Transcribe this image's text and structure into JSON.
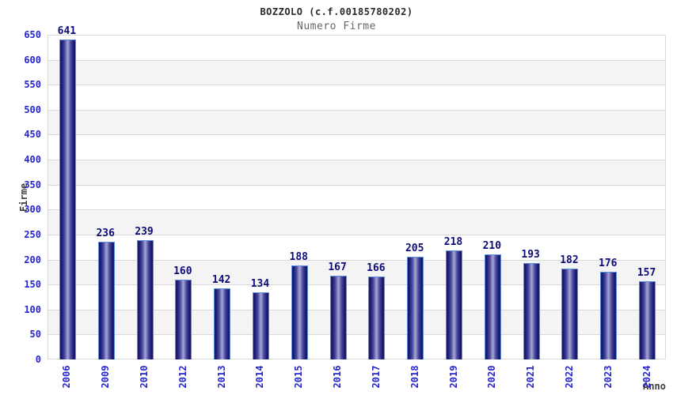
{
  "chart_data": {
    "type": "bar",
    "title": "BOZZOLO (c.f.00185780202)",
    "subtitle": "Numero Firme",
    "xlabel": "Anno",
    "ylabel": "Firme",
    "categories": [
      "2006",
      "2009",
      "2010",
      "2012",
      "2013",
      "2014",
      "2015",
      "2016",
      "2017",
      "2018",
      "2019",
      "2020",
      "2021",
      "2022",
      "2023",
      "2024"
    ],
    "values": [
      641,
      236,
      239,
      160,
      142,
      134,
      188,
      167,
      166,
      205,
      218,
      210,
      193,
      182,
      176,
      157
    ],
    "ylim": [
      0,
      650
    ],
    "y_ticks": [
      0,
      50,
      100,
      150,
      200,
      250,
      300,
      350,
      400,
      450,
      500,
      550,
      600,
      650
    ],
    "grid": true,
    "legend_position": "none",
    "plot_background": "alternating horizontal bands every 50 units"
  },
  "colors": {
    "tick_label_blue": "#2626cc",
    "value_label_navy": "#0d0d7a",
    "bar_edge_dark": "#17176a",
    "bar_center_light": "#a8a8d4",
    "bar_border_light_blue": "#5b8ede",
    "gridline": "#d9d9d9",
    "band_gray": "#f4f4f4",
    "axis_title_gray": "#3d3d3d",
    "title_color": "#2a2a2a",
    "subtitle_color": "#666666",
    "background": "#ffffff"
  }
}
